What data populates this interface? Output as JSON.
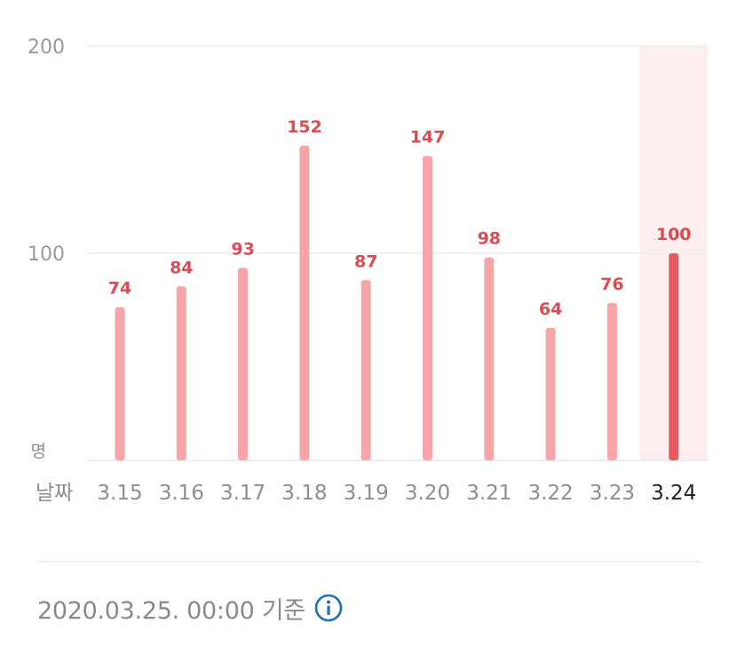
{
  "chart_data": {
    "type": "bar",
    "categories": [
      "3.15",
      "3.16",
      "3.17",
      "3.18",
      "3.19",
      "3.20",
      "3.21",
      "3.22",
      "3.23",
      "3.24"
    ],
    "values": [
      74,
      84,
      93,
      152,
      87,
      147,
      98,
      64,
      76,
      100
    ],
    "ylim": [
      0,
      200
    ],
    "yticks": [
      "200",
      "100"
    ],
    "ylabel": "명",
    "xlabel": "날짜",
    "highlight_category": "3.24",
    "grid": true,
    "colors": {
      "bar": "#f7a6a8",
      "bar_highlight": "#e85a5f",
      "highlight_band": "#fdeeee",
      "value_label": "#d94c52",
      "grid": "#eeeeee"
    }
  },
  "footer": {
    "timestamp": "2020.03.25. 00:00 기준",
    "info_icon": "info-icon",
    "info_color": "#1f6fb7"
  }
}
